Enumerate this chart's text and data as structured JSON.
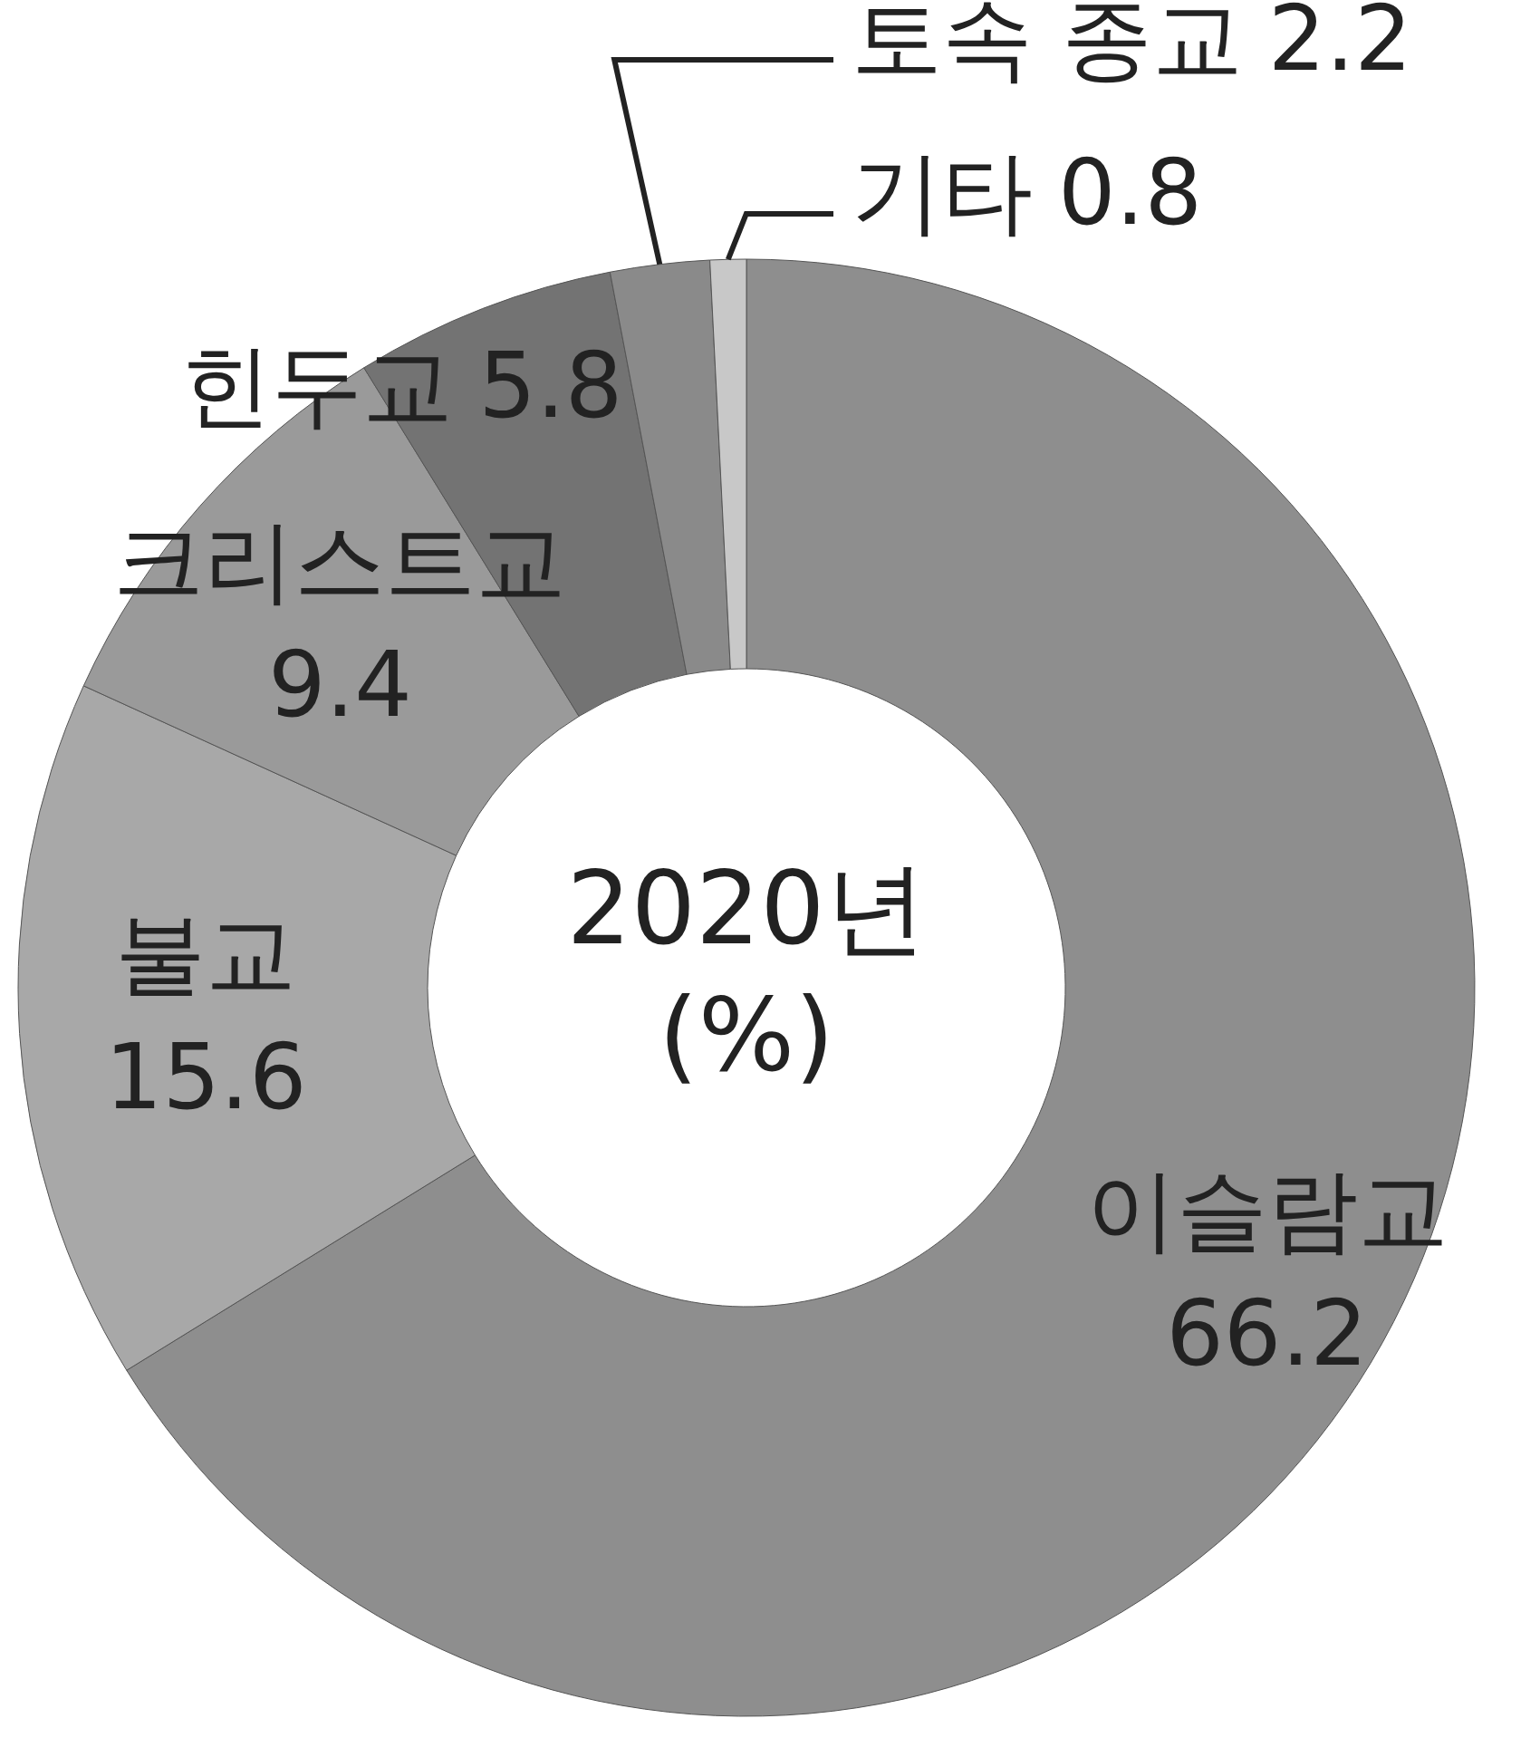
{
  "chart_data": {
    "type": "donut",
    "title": "2020년",
    "subtitle": "(%)",
    "categories": [
      "이슬람교",
      "불교",
      "크리스트교",
      "힌두교",
      "토속 종교",
      "기타"
    ],
    "values": [
      66.2,
      15.6,
      9.4,
      5.8,
      2.2,
      0.8
    ],
    "colors": [
      "#8e8e8e",
      "#a8a8a8",
      "#9a9a9a",
      "#737373",
      "#8a8a8a",
      "#c8c8c8"
    ],
    "data_labels": true
  }
}
